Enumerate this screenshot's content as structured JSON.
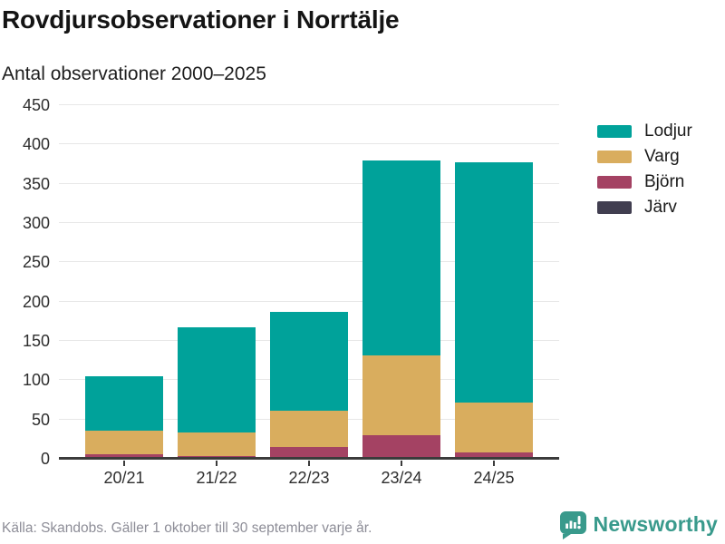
{
  "header": {
    "title": "Rovdjursobservationer i Norrtälje",
    "subtitle": "Antal observationer 2000–2025"
  },
  "chart_data": {
    "type": "bar",
    "stacked": true,
    "title": "Rovdjursobservationer i Norrtälje",
    "subtitle": "Antal observationer 2000–2025",
    "categories": [
      "20/21",
      "21/22",
      "22/23",
      "23/24",
      "24/25"
    ],
    "series": [
      {
        "name": "Lodjur",
        "color": "#00a29a",
        "values": [
          69,
          134,
          126,
          249,
          305
        ]
      },
      {
        "name": "Varg",
        "color": "#d9ad5e",
        "values": [
          30,
          30,
          46,
          101,
          64
        ]
      },
      {
        "name": "Björn",
        "color": "#a44263",
        "values": [
          6,
          3,
          15,
          30,
          8
        ]
      },
      {
        "name": "Järv",
        "color": "#413e50",
        "values": [
          0,
          0,
          0,
          0,
          0
        ]
      }
    ],
    "stack_order_bottom_to_top": [
      "Järv",
      "Björn",
      "Varg",
      "Lodjur"
    ],
    "totals": [
      105,
      167,
      187,
      380,
      377
    ],
    "ylim": [
      0,
      450
    ],
    "ytick_step": 50,
    "yticks": [
      0,
      50,
      100,
      150,
      200,
      250,
      300,
      350,
      400,
      450
    ],
    "xlabel": "",
    "ylabel": "",
    "grid": true,
    "legend_position": "right"
  },
  "footer": {
    "source": "Källa: Skandobs. Gäller 1 oktober till 30 september varje år.",
    "brand": "Newsworthy"
  },
  "colors": {
    "accent_teal": "#00a29a",
    "gold": "#d9ad5e",
    "maroon": "#a44263",
    "charcoal": "#413e50",
    "gridline": "#e7e7e7",
    "axis": "#3b3b3b",
    "logo_teal": "#399a8c",
    "muted_text": "#8d8d97"
  }
}
